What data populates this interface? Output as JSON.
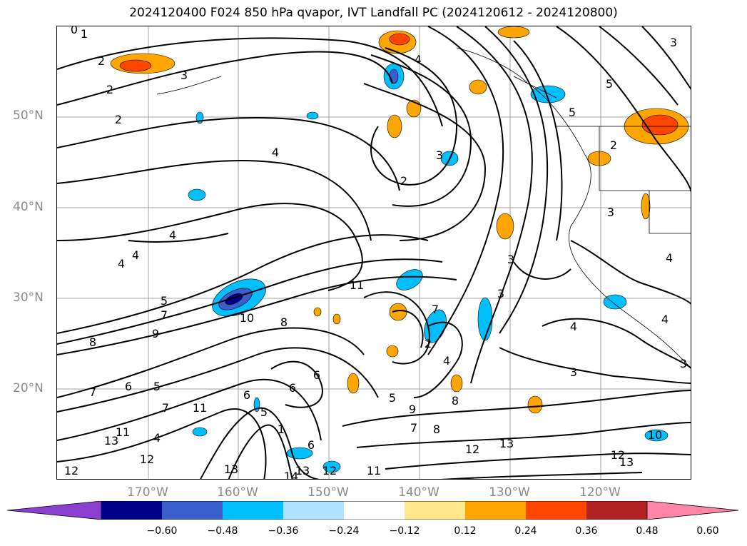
{
  "title": "2024120400 F024 850 hPa qvapor, IVT Landfall PC (2024120612 - 2024120800)",
  "map": {
    "lat_labels": [
      "50°N",
      "40°N",
      "30°N",
      "20°N"
    ],
    "lon_labels": [
      "170°W",
      "160°W",
      "150°W",
      "140°W",
      "130°W",
      "120°W"
    ]
  },
  "contour_labels": [
    "0",
    "1",
    "2",
    "2",
    "3",
    "2",
    "2",
    "4",
    "4",
    "4",
    "4",
    "2",
    "3",
    "3",
    "5",
    "4",
    "3",
    "5",
    "3",
    "3",
    "4",
    "5",
    "7",
    "9",
    "8",
    "10",
    "11",
    "8",
    "6",
    "7",
    "5",
    "4",
    "7",
    "8",
    "2",
    "6",
    "4",
    "6",
    "5",
    "7",
    "11",
    "6",
    "5",
    "1",
    "4",
    "6",
    "12",
    "13",
    "12",
    "12",
    "13",
    "11",
    "13",
    "12",
    "13",
    "14",
    "13",
    "12",
    "10",
    "11",
    "9",
    "8",
    "7",
    "3",
    "4",
    "3"
  ],
  "colorbar": {
    "colors": [
      "#8b3fd1",
      "#00008b",
      "#3a5fcd",
      "#00bfff",
      "#b0e2ff",
      "#ffffff",
      "#ffe78a",
      "#ffa500",
      "#ff4500",
      "#b22222",
      "#ff86a8"
    ],
    "tick_labels": [
      "−0.60",
      "−0.48",
      "−0.36",
      "−0.24",
      "−0.12",
      "0.12",
      "0.24",
      "0.36",
      "0.48",
      "0.60"
    ]
  }
}
